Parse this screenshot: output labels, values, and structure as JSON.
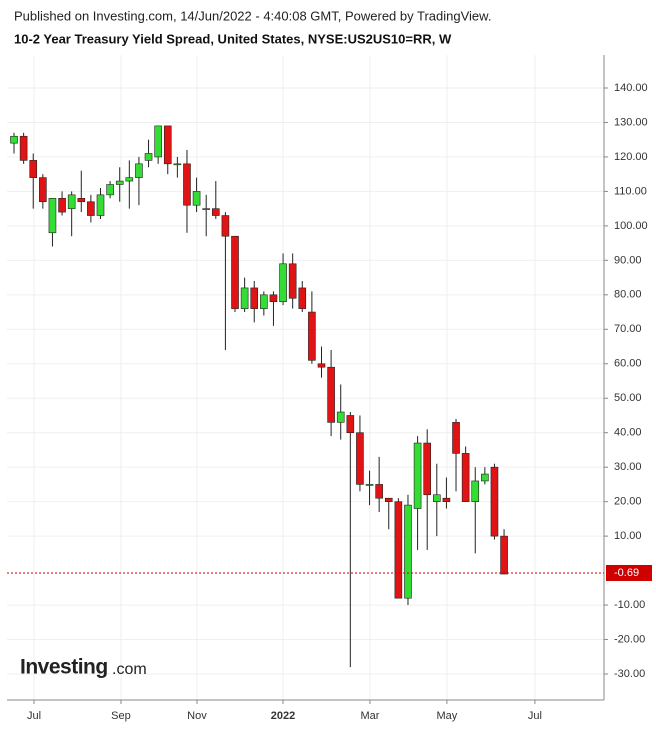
{
  "chart_data": {
    "type": "candlestick",
    "published": "Published on Investing.com, 14/Jun/2022 - 4:40:08 GMT, Powered by TradingView.",
    "title": "10-2 Year Treasury Yield Spread, United States, NYSE:US2US10=RR, W",
    "logo": "Investing",
    "logo_suffix": ".com",
    "categories": [
      null,
      null,
      null,
      null,
      null,
      null,
      null,
      null,
      null,
      null,
      null,
      null,
      null,
      null,
      null,
      null,
      null,
      null,
      null,
      null,
      null,
      null,
      null,
      null,
      null,
      null,
      null,
      null,
      null,
      null,
      null,
      null,
      null,
      null,
      null,
      null,
      null,
      null,
      null,
      null,
      null,
      null,
      null,
      null,
      null,
      null,
      null,
      null,
      null,
      null,
      null,
      null
    ],
    "open": [
      124,
      126,
      119,
      114,
      98,
      108,
      105,
      108,
      107,
      103,
      109,
      112,
      113,
      114,
      119,
      120,
      129,
      118,
      118,
      106,
      105,
      105,
      103,
      97,
      76,
      82,
      76,
      80,
      78,
      89,
      82,
      75,
      60,
      59,
      43,
      45,
      40,
      25,
      25,
      21,
      20,
      -8,
      18,
      37,
      20,
      21,
      43,
      34,
      20,
      26,
      30,
      10
    ],
    "high": [
      127,
      127,
      121,
      115,
      108,
      110,
      110,
      116,
      109,
      111,
      113,
      117,
      119,
      120,
      125,
      129,
      129,
      120,
      122,
      114,
      109,
      113,
      104,
      97,
      85,
      84,
      81,
      81,
      92,
      92,
      84,
      81,
      65,
      64,
      54,
      46,
      45,
      29,
      33,
      21,
      21,
      22,
      39,
      41,
      31,
      27,
      44,
      36,
      30,
      30,
      31,
      12
    ],
    "low": [
      121,
      118,
      105,
      105,
      94,
      103,
      97,
      104,
      101,
      102,
      108,
      107,
      105,
      106,
      117,
      118,
      115,
      114,
      98,
      104,
      97,
      102,
      64,
      75,
      75,
      72,
      74,
      71,
      77,
      76,
      75,
      60,
      56,
      39,
      38,
      -28,
      23,
      19,
      17,
      12,
      -8,
      -10,
      6,
      6,
      10,
      18,
      23,
      20,
      5,
      25,
      9,
      -1
    ],
    "close": [
      126,
      119,
      114,
      107,
      108,
      104,
      109,
      107,
      103,
      109,
      112,
      113,
      114,
      118,
      121,
      129,
      118,
      118,
      106,
      110,
      105,
      103,
      97,
      76,
      82,
      76,
      80,
      78,
      89,
      79,
      76,
      61,
      59,
      43,
      46,
      40,
      25,
      25,
      21,
      20,
      -8,
      19,
      37,
      22,
      22,
      20,
      34,
      20,
      26,
      28,
      10,
      -1
    ],
    "up_color": "#33dd33",
    "down_color": "#e01414",
    "last_value": -0.69,
    "last_color": "#d00000",
    "xlim": [
      -0.73,
      61.4
    ],
    "xticks": [
      {
        "value": 2.08,
        "label": "Jul"
      },
      {
        "value": 11.13,
        "label": "Sep"
      },
      {
        "value": 19.04,
        "label": "Nov"
      },
      {
        "value": 27.99,
        "label": "2022"
      },
      {
        "value": 37.04,
        "label": "Mar"
      },
      {
        "value": 45.05,
        "label": "May"
      },
      {
        "value": 54.21,
        "label": "Jul"
      }
    ],
    "ylim": [
      -37.54,
      149.57
    ],
    "yticks": [
      {
        "value": -30,
        "label": "-30.00"
      },
      {
        "value": -20,
        "label": "-20.00"
      },
      {
        "value": -10,
        "label": "-10.00"
      },
      {
        "value": 10,
        "label": "10.00"
      },
      {
        "value": 20,
        "label": "20.00"
      },
      {
        "value": 30,
        "label": "30.00"
      },
      {
        "value": 40,
        "label": "40.00"
      },
      {
        "value": 50,
        "label": "50.00"
      },
      {
        "value": 60,
        "label": "60.00"
      },
      {
        "value": 70,
        "label": "70.00"
      },
      {
        "value": 80,
        "label": "80.00"
      },
      {
        "value": 90,
        "label": "90.00"
      },
      {
        "value": 100,
        "label": "100.00"
      },
      {
        "value": 110,
        "label": "110.00"
      },
      {
        "value": 120,
        "label": "120.00"
      },
      {
        "value": 130,
        "label": "130.00"
      },
      {
        "value": 140,
        "label": "140.00"
      }
    ],
    "grid": true
  }
}
